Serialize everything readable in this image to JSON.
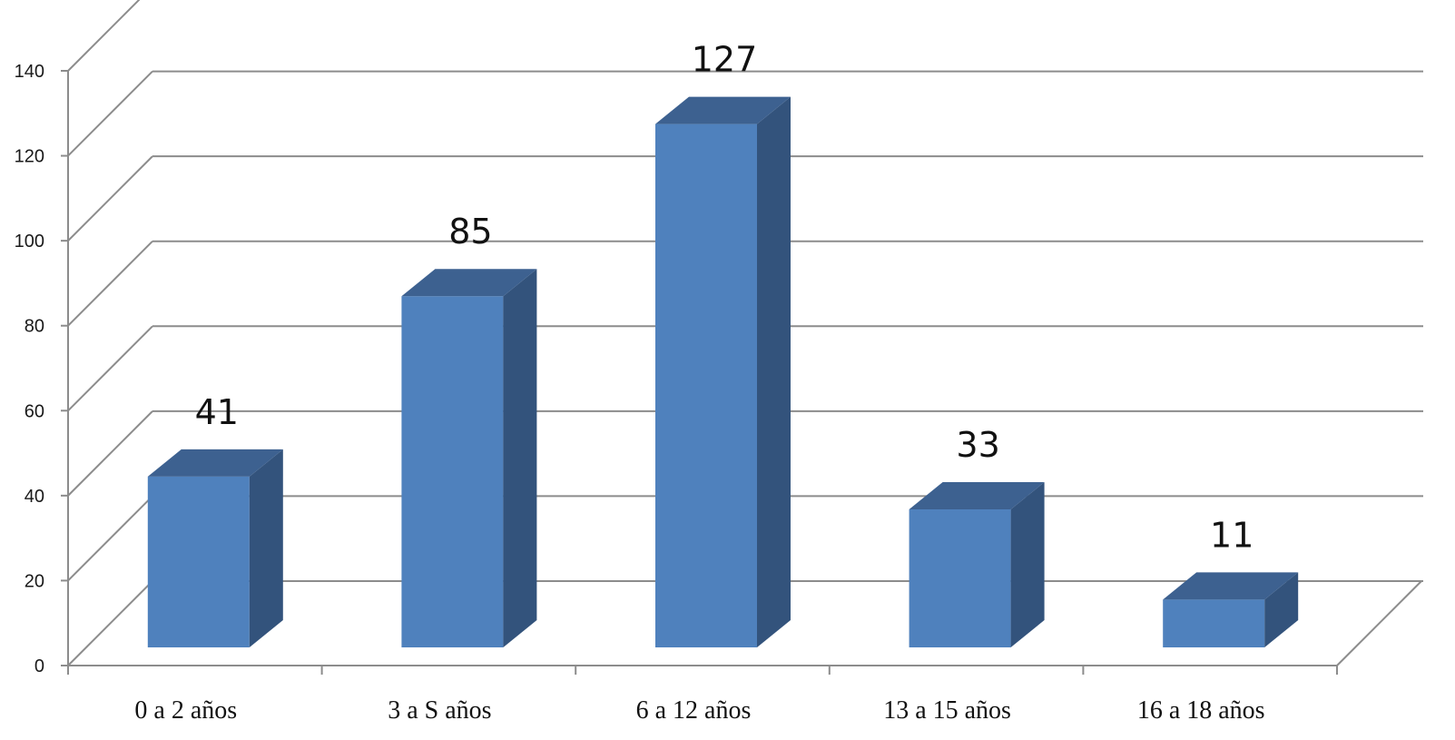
{
  "chart_data": {
    "type": "bar",
    "title": "",
    "xlabel": "",
    "ylabel": "",
    "categories": [
      "0 a 2 años",
      "3 a S años",
      "6 a 12 años",
      "13 a 15 años",
      "16 a 18 años"
    ],
    "values": [
      41,
      85,
      127,
      33,
      11
    ],
    "ylim": [
      0,
      140
    ],
    "yticks": [
      0,
      20,
      40,
      60,
      80,
      100,
      120,
      140
    ],
    "grid": true,
    "legend": "none",
    "style": "3d-column",
    "colors": {
      "bar_front": "#4f81bd",
      "bar_side": "#33537c",
      "bar_top": "#3d6190",
      "grid": "#8c8c8c"
    }
  }
}
